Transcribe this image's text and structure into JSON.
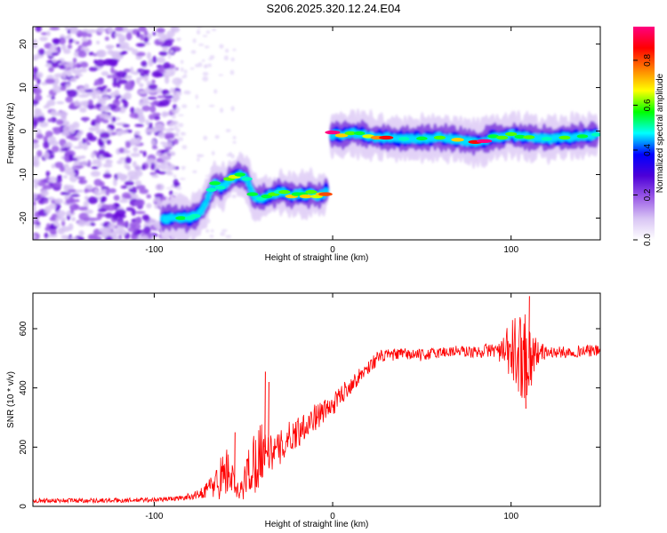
{
  "title": "S206.2025.320.12.24.E04",
  "chart_data": [
    {
      "type": "heatmap",
      "title": "S206.2025.320.12.24.E04",
      "xlabel": "Height of straight line (km)",
      "ylabel": "Frequency (Hz)",
      "xlim": [
        -168,
        150
      ],
      "ylim": [
        -25,
        24
      ],
      "xticks": [
        -100,
        0,
        100
      ],
      "yticks": [
        -20,
        -10,
        0,
        10,
        20
      ],
      "colorbar": {
        "label": "Normalized spectral amplitude",
        "range": [
          0,
          0.95
        ],
        "ticks": [
          0.0,
          0.2,
          0.4,
          0.6,
          0.8
        ],
        "colormap": [
          "#ffffff",
          "#d8c4f4",
          "#9a5ae6",
          "#4d00d8",
          "#0000ff",
          "#00ffff",
          "#00ff00",
          "#ffff00",
          "#ff8000",
          "#ff0000",
          "#ff0080"
        ]
      },
      "noise_region_x": [
        -168,
        -95
      ],
      "ridge": {
        "x": [
          -95,
          -90,
          -85,
          -80,
          -77,
          -74,
          -71,
          -68,
          -66,
          -63,
          -60,
          -58,
          -55,
          -52,
          -48,
          -45,
          -43,
          -40,
          -37,
          -33,
          -30,
          -27,
          -23,
          -20,
          -17,
          -15,
          -12,
          -9,
          -6,
          -4,
          0,
          5,
          10,
          15,
          20,
          25,
          30,
          40,
          50,
          60,
          70,
          80,
          85,
          90,
          95,
          100,
          105,
          110,
          120,
          130,
          140,
          148
        ],
        "frequency": [
          -20,
          -20,
          -20,
          -20,
          -19.5,
          -18.5,
          -16.5,
          -13.5,
          -12,
          -13,
          -12.5,
          -11,
          -10.5,
          -10,
          -11,
          -14.5,
          -15.5,
          -15.5,
          -15,
          -14.5,
          -14,
          -14,
          -15,
          -14.5,
          -14.5,
          -15,
          -14,
          -15,
          -14.5,
          -14.5,
          -0.3,
          -1,
          -0.5,
          -0.5,
          -1.2,
          -1.5,
          -1.5,
          -1.8,
          -1.7,
          -1.5,
          -2,
          -2.5,
          -2.3,
          -1.2,
          -1.5,
          -0.7,
          -1.3,
          -1.4,
          -1.8,
          -1.5,
          -1.2,
          -0.8
        ],
        "amplitude": [
          0.3,
          0.45,
          0.55,
          0.5,
          0.5,
          0.45,
          0.45,
          0.5,
          0.55,
          0.5,
          0.45,
          0.6,
          0.65,
          0.55,
          0.5,
          0.55,
          0.45,
          0.5,
          0.55,
          0.6,
          0.5,
          0.6,
          0.7,
          0.55,
          0.55,
          0.7,
          0.6,
          0.65,
          0.7,
          0.8,
          0.95,
          0.7,
          0.6,
          0.55,
          0.65,
          0.75,
          0.85,
          0.5,
          0.55,
          0.6,
          0.7,
          0.85,
          0.95,
          0.55,
          0.6,
          0.6,
          0.55,
          0.6,
          0.5,
          0.6,
          0.55,
          0.5
        ]
      }
    },
    {
      "type": "line",
      "xlabel": "Height of straight line (km)",
      "ylabel": "SNR (10 * v/v)",
      "xlim": [
        -168,
        150
      ],
      "ylim": [
        0,
        720
      ],
      "xticks": [
        -100,
        0,
        100
      ],
      "yticks": [
        0,
        200,
        400,
        600
      ],
      "color": "#ff0000",
      "series": [
        {
          "name": "SNR",
          "x": [
            -168,
            -140,
            -120,
            -100,
            -85,
            -75,
            -70,
            -65,
            -60,
            -57,
            -55,
            -52,
            -48,
            -44,
            -41,
            -38,
            -35,
            -30,
            -25,
            -20,
            -15,
            -10,
            -5,
            0,
            5,
            10,
            15,
            20,
            25,
            30,
            40,
            50,
            60,
            70,
            80,
            90,
            95,
            100,
            105,
            108,
            110,
            115,
            120,
            130,
            140,
            150
          ],
          "mean": [
            20,
            20,
            20,
            22,
            28,
            40,
            60,
            80,
            120,
            110,
            60,
            40,
            110,
            150,
            180,
            200,
            180,
            190,
            230,
            250,
            280,
            300,
            320,
            340,
            380,
            410,
            440,
            470,
            500,
            510,
            515,
            510,
            520,
            525,
            520,
            530,
            520,
            520,
            510,
            520,
            500,
            520,
            520,
            520,
            525,
            525
          ],
          "spread": [
            8,
            8,
            8,
            8,
            8,
            15,
            30,
            60,
            90,
            70,
            40,
            30,
            80,
            110,
            120,
            80,
            60,
            60,
            55,
            55,
            50,
            45,
            40,
            35,
            35,
            30,
            25,
            25,
            25,
            20,
            20,
            20,
            20,
            20,
            20,
            25,
            40,
            120,
            140,
            160,
            130,
            40,
            20,
            20,
            20,
            20
          ],
          "spikes": [
            [
              -55,
              250
            ],
            [
              -38,
              455
            ],
            [
              -36,
              420
            ],
            [
              110,
              710
            ],
            [
              108,
              330
            ]
          ]
        }
      ]
    }
  ]
}
